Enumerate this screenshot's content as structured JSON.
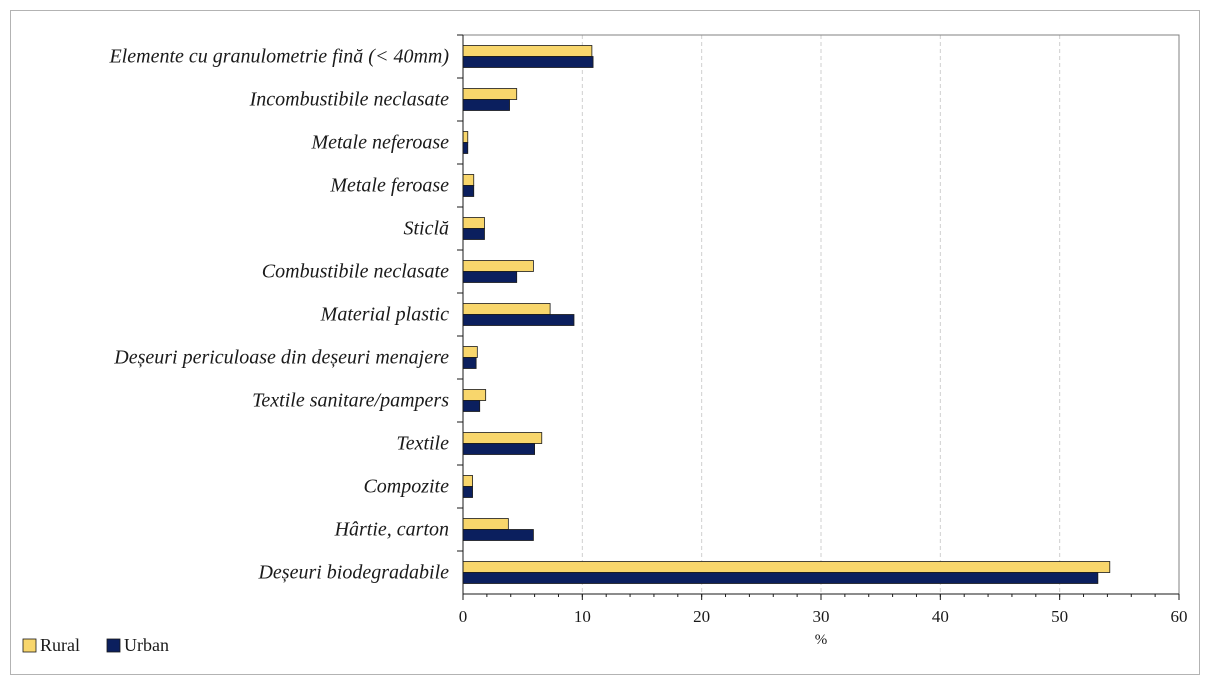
{
  "chart_data": {
    "type": "bar",
    "orientation": "horizontal",
    "categories": [
      "Elemente cu granulometrie fină (< 40mm)",
      "Incombustibile neclasate",
      "Metale neferoase",
      "Metale feroase",
      "Sticlă",
      "Combustibile neclasate",
      "Material plastic",
      "Deșeuri periculoase din deșeuri menajere",
      "Textile sanitare/pampers",
      "Textile",
      "Compozite",
      "Hârtie, carton",
      "Deșeuri biodegradabile"
    ],
    "series": [
      {
        "name": "Rural",
        "color": "#f8d66c",
        "values": [
          10.8,
          4.5,
          0.4,
          0.9,
          1.8,
          5.9,
          7.3,
          1.2,
          1.9,
          6.6,
          0.8,
          3.8,
          54.2
        ]
      },
      {
        "name": "Urban",
        "color": "#0b1f5e",
        "values": [
          10.9,
          3.9,
          0.4,
          0.9,
          1.8,
          4.5,
          9.3,
          1.1,
          1.4,
          6.0,
          0.8,
          5.9,
          53.2
        ]
      }
    ],
    "xlabel": "%",
    "ylabel": "",
    "xlim": [
      0,
      60
    ],
    "xticks": [
      0,
      10,
      20,
      30,
      40,
      50,
      60
    ],
    "grid": "vertical dashed",
    "legend": "bottom-left"
  }
}
